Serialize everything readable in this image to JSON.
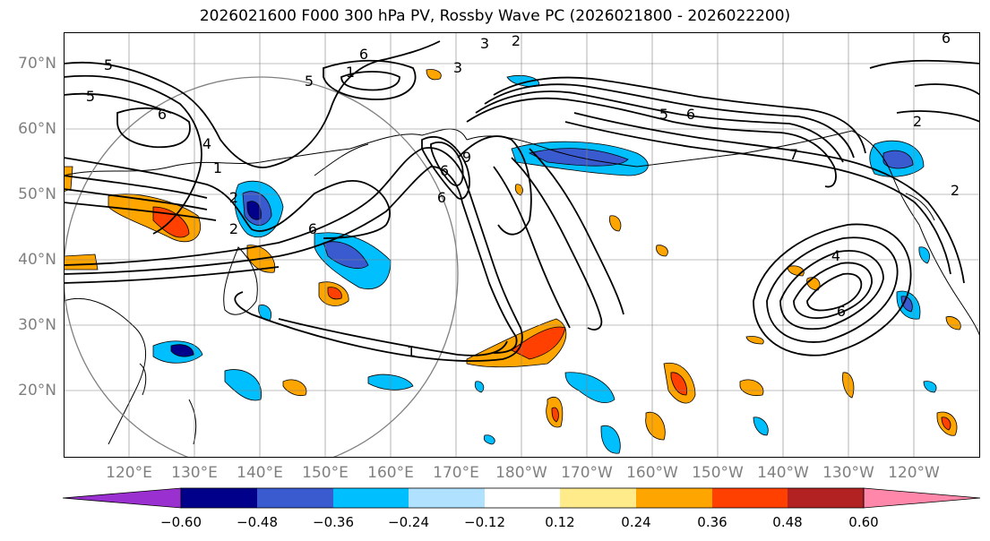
{
  "title": "2026021600 F000 300 hPa PV, Rossby Wave PC (2026021800 - 2026022200)",
  "lat_labels": [
    "70°N",
    "60°N",
    "50°N",
    "40°N",
    "30°N",
    "20°N"
  ],
  "lon_labels": [
    "120°E",
    "130°E",
    "140°E",
    "150°E",
    "160°E",
    "170°E",
    "180°W",
    "170°W",
    "160°W",
    "150°W",
    "140°W",
    "130°W",
    "120°W"
  ],
  "colorbar": {
    "tick_labels": [
      "−0.60",
      "−0.48",
      "−0.36",
      "−0.24",
      "−0.12",
      "0.12",
      "0.24",
      "0.36",
      "0.48",
      "0.60"
    ],
    "colors": [
      "#9b30d0",
      "#00008b",
      "#3a5bd0",
      "#00bfff",
      "#b0e2ff",
      "#ffffff",
      "#ffeb8a",
      "#ffa500",
      "#ff4000",
      "#b22222",
      "#ff88aa"
    ]
  },
  "contour_labels": [
    "5",
    "5",
    "6",
    "6",
    "1",
    "3",
    "2",
    "6",
    "4",
    "5",
    "6",
    "7",
    "6",
    "4",
    "1",
    "2",
    "6",
    "5",
    "2",
    "2",
    "1",
    "3",
    "6",
    "9",
    "6",
    "2"
  ],
  "colors": {
    "contour": "#000000",
    "grid": "#808080",
    "coast": "#000000",
    "circle": "#808080"
  }
}
